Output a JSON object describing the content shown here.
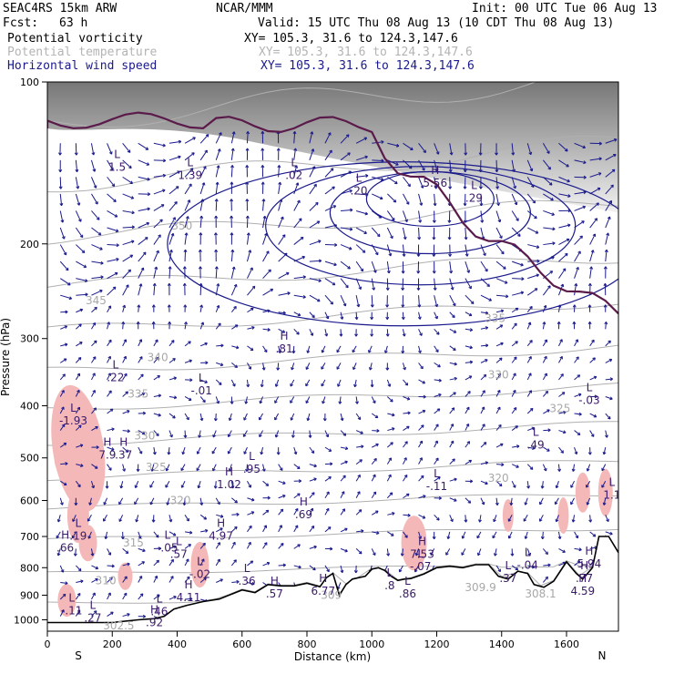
{
  "header": {
    "model": "SEAC4RS 15km ARW",
    "center": "NCAR/MMM",
    "init": "Init: 00 UTC Tue 06 Aug 13",
    "fcst_label": "Fcst:",
    "fcst_value": "63 h",
    "valid": "Valid: 15 UTC Thu 08 Aug 13 (10 CDT Thu 08 Aug 13)"
  },
  "fields": [
    {
      "name": "Potential vorticity",
      "xy": "XY= 105.3, 31.6 to 124.3,147.6",
      "color": "#000000"
    },
    {
      "name": "Potential temperature",
      "xy": "XY= 105.3, 31.6 to 124.3,147.6",
      "color": "#b4b4b4"
    },
    {
      "name": "Horizontal wind speed",
      "xy": "XY= 105.3, 31.6 to 124.3,147.6",
      "color": "#1a1a8c"
    }
  ],
  "colors": {
    "pv_fill": "#f5b8b8",
    "theta": "#b0b0b0",
    "wind": "#1a1a8c",
    "terrain": "#000000",
    "tropopause": "#5a1a4a"
  },
  "chart_data": {
    "type": "cross-section",
    "xlabel": "Distance (km)",
    "ylabel": "Pressure (hPa)",
    "xlim": [
      0,
      1760
    ],
    "ylim": [
      1050,
      100
    ],
    "y_scale": "log",
    "x_ticks": [
      0,
      200,
      400,
      600,
      800,
      1000,
      1200,
      1400,
      1600
    ],
    "y_ticks": [
      100,
      200,
      300,
      400,
      500,
      600,
      700,
      800,
      900,
      1000
    ],
    "endpoint_labels": {
      "left": "S",
      "right": "N"
    },
    "terrain_surface_hpa": {
      "x": [
        0,
        50,
        120,
        200,
        280,
        330,
        360,
        390,
        430,
        480,
        530,
        570,
        600,
        640,
        680,
        720,
        760,
        800,
        840,
        860,
        880,
        900,
        920,
        940,
        980,
        1000,
        1020,
        1040,
        1060,
        1080,
        1100,
        1120,
        1160,
        1200,
        1240,
        1280,
        1320,
        1360,
        1390,
        1420,
        1450,
        1480,
        1500,
        1530,
        1560,
        1600,
        1630,
        1650,
        1680,
        1700,
        1730,
        1760
      ],
      "p": [
        1012,
        1012,
        1012,
        1012,
        1000,
        995,
        985,
        955,
        940,
        925,
        915,
        895,
        880,
        890,
        860,
        865,
        865,
        855,
        868,
        835,
        820,
        900,
        860,
        840,
        830,
        805,
        800,
        810,
        830,
        845,
        840,
        838,
        822,
        800,
        795,
        800,
        790,
        790,
        830,
        840,
        812,
        820,
        860,
        870,
        848,
        780,
        820,
        840,
        800,
        700,
        700,
        750
      ]
    },
    "theta_labels": [
      {
        "text": "350",
        "x": 415,
        "p": 185
      },
      {
        "text": "345",
        "x": 150,
        "p": 255
      },
      {
        "text": "340",
        "x": 340,
        "p": 325
      },
      {
        "text": "335",
        "x": 280,
        "p": 380
      },
      {
        "text": "330",
        "x": 300,
        "p": 455
      },
      {
        "text": "325",
        "x": 335,
        "p": 520
      },
      {
        "text": "320",
        "x": 410,
        "p": 600
      },
      {
        "text": "315",
        "x": 265,
        "p": 720
      },
      {
        "text": "310",
        "x": 180,
        "p": 845
      },
      {
        "text": "309",
        "x": 875,
        "p": 900
      },
      {
        "text": "335",
        "x": 1380,
        "p": 275
      },
      {
        "text": "330",
        "x": 1390,
        "p": 350
      },
      {
        "text": "325",
        "x": 1580,
        "p": 405
      },
      {
        "text": "320",
        "x": 1390,
        "p": 545
      },
      {
        "text": "309.9",
        "x": 1335,
        "p": 870
      },
      {
        "text": "308.1",
        "x": 1520,
        "p": 895
      },
      {
        "text": "302.5",
        "x": 220,
        "p": 1025
      }
    ],
    "extrema_labels": [
      {
        "kind": "L",
        "value": "1.5",
        "x": 215,
        "p": 140
      },
      {
        "kind": "L",
        "value": "1.39",
        "x": 440,
        "p": 145
      },
      {
        "kind": "L",
        "value": ".02",
        "x": 760,
        "p": 145
      },
      {
        "kind": "L",
        "value": ".20",
        "x": 960,
        "p": 155
      },
      {
        "kind": "H",
        "value": "5.56",
        "x": 1195,
        "p": 150
      },
      {
        "kind": "L",
        "value": ".29",
        "x": 1315,
        "p": 160
      },
      {
        "kind": "H",
        "value": ".81",
        "x": 730,
        "p": 305
      },
      {
        "kind": "L",
        "value": ".22",
        "x": 210,
        "p": 345
      },
      {
        "kind": "L",
        "value": "-.01",
        "x": 475,
        "p": 365
      },
      {
        "kind": "L",
        "value": "-.03",
        "x": 1670,
        "p": 380
      },
      {
        "kind": "L",
        "value": "-1.93",
        "x": 80,
        "p": 415
      },
      {
        "kind": "L",
        "value": ".49",
        "x": 1505,
        "p": 460
      },
      {
        "kind": "H",
        "value": "7.9",
        "x": 185,
        "p": 480
      },
      {
        "kind": "H",
        "value": ".37",
        "x": 235,
        "p": 480
      },
      {
        "kind": "L",
        "value": ".95",
        "x": 630,
        "p": 510
      },
      {
        "kind": "H",
        "value": "1.02",
        "x": 560,
        "p": 545
      },
      {
        "kind": "L",
        "value": "-.11",
        "x": 1200,
        "p": 550
      },
      {
        "kind": "L",
        "value": "1.1",
        "x": 1740,
        "p": 570
      },
      {
        "kind": "H",
        "value": ".69",
        "x": 790,
        "p": 620
      },
      {
        "kind": "H",
        "value": "4.97",
        "x": 535,
        "p": 680
      },
      {
        "kind": "L",
        "value": ".19",
        "x": 95,
        "p": 680
      },
      {
        "kind": "H",
        "value": ".66",
        "x": 55,
        "p": 715
      },
      {
        "kind": "L",
        "value": "-.05",
        "x": 370,
        "p": 715
      },
      {
        "kind": "L",
        "value": ".57",
        "x": 405,
        "p": 735
      },
      {
        "kind": "H",
        "value": "7.53",
        "x": 1155,
        "p": 735
      },
      {
        "kind": "L",
        "value": "-.07",
        "x": 1150,
        "p": 775
      },
      {
        "kind": "L",
        "value": "-.04",
        "x": 1480,
        "p": 770
      },
      {
        "kind": "H",
        "value": "5.94",
        "x": 1670,
        "p": 765
      },
      {
        "kind": "L",
        "value": "-.02",
        "x": 470,
        "p": 800
      },
      {
        "kind": "L",
        "value": ".36",
        "x": 615,
        "p": 825
      },
      {
        "kind": "L",
        "value": ".37",
        "x": 1420,
        "p": 815
      },
      {
        "kind": "H",
        "value": ".77",
        "x": 1655,
        "p": 815
      },
      {
        "kind": "L",
        "value": ".8",
        "x": 1055,
        "p": 840
      },
      {
        "kind": "H",
        "value": "6.77",
        "x": 850,
        "p": 860
      },
      {
        "kind": "H",
        "value": "4.11",
        "x": 435,
        "p": 885
      },
      {
        "kind": "H",
        "value": ".57",
        "x": 700,
        "p": 870
      },
      {
        "kind": "L",
        "value": ".86",
        "x": 1110,
        "p": 870
      },
      {
        "kind": "H",
        "value": "4.59",
        "x": 1650,
        "p": 860
      },
      {
        "kind": "L",
        "value": "-.11",
        "x": 75,
        "p": 935
      },
      {
        "kind": "L",
        "value": ".27",
        "x": 140,
        "p": 965
      },
      {
        "kind": "L",
        "value": ".46",
        "x": 345,
        "p": 940
      },
      {
        "kind": "H",
        "value": ".92",
        "x": 330,
        "p": 985
      }
    ]
  }
}
